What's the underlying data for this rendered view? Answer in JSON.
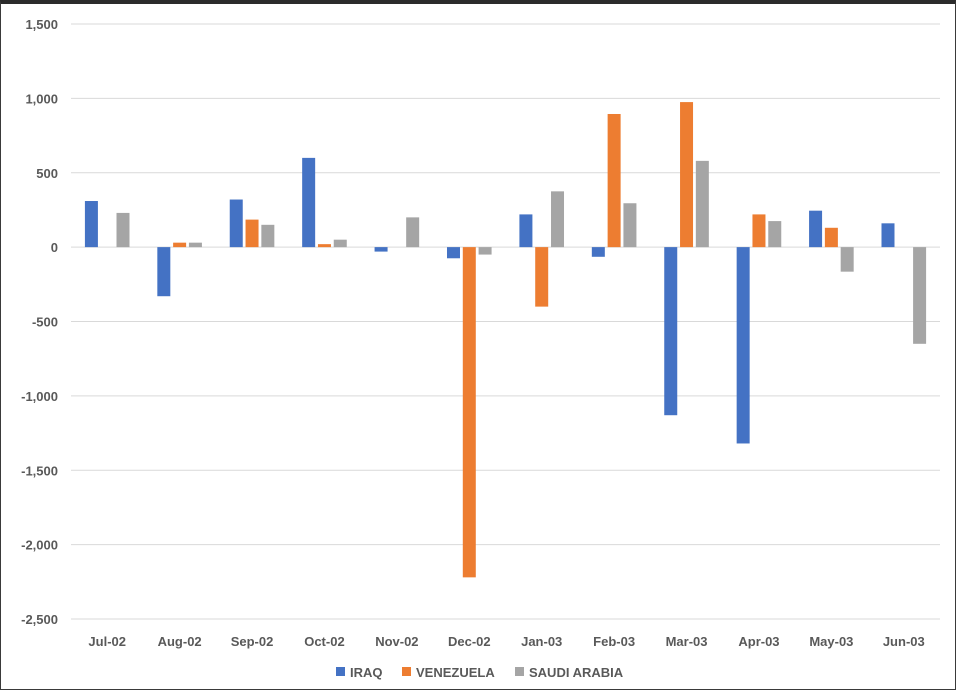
{
  "chart_data": {
    "type": "bar",
    "title": "",
    "xlabel": "",
    "ylabel": "",
    "ylim": [
      -2500,
      1500
    ],
    "yticks": [
      1500,
      1000,
      500,
      0,
      -500,
      -1000,
      -1500,
      -2000,
      -2500
    ],
    "ytick_labels": [
      "1,500",
      "1,000",
      "500",
      "0",
      "-500",
      "-1,000",
      "-1,500",
      "-2,000",
      "-2,500"
    ],
    "grid": true,
    "legend_position": "bottom",
    "categories": [
      "Jul-02",
      "Aug-02",
      "Sep-02",
      "Oct-02",
      "Nov-02",
      "Dec-02",
      "Jan-03",
      "Feb-03",
      "Mar-03",
      "Apr-03",
      "May-03",
      "Jun-03"
    ],
    "series": [
      {
        "name": "IRAQ",
        "color": "#4472C4",
        "values": [
          310,
          -330,
          320,
          600,
          -30,
          -75,
          220,
          -65,
          -1130,
          -1320,
          245,
          160
        ]
      },
      {
        "name": "VENEZUELA",
        "color": "#ED7D31",
        "values": [
          0,
          30,
          185,
          20,
          0,
          -2220,
          -400,
          895,
          975,
          220,
          130,
          0
        ]
      },
      {
        "name": "SAUDI ARABIA",
        "color": "#A5A5A5",
        "values": [
          230,
          30,
          150,
          50,
          200,
          -50,
          375,
          295,
          580,
          175,
          -165,
          -650
        ]
      }
    ]
  }
}
